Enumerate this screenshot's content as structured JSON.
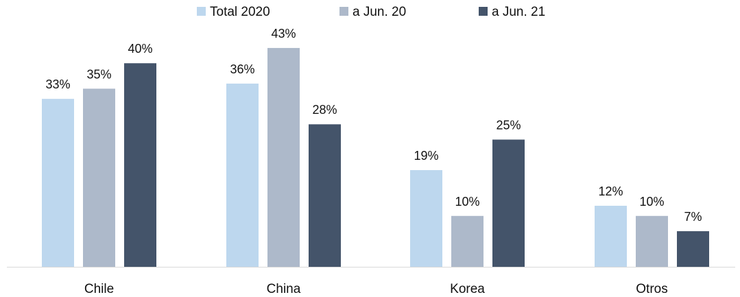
{
  "chart_data": {
    "type": "bar",
    "categories": [
      "Chile",
      "China",
      "Korea",
      "Otros"
    ],
    "series": [
      {
        "name": "Total 2020",
        "values": [
          33,
          36,
          19,
          12
        ],
        "labels": [
          "33%",
          "36%",
          "19%",
          "12%"
        ],
        "color": "#bdd7ee"
      },
      {
        "name": "a Jun. 20",
        "values": [
          35,
          43,
          10,
          10
        ],
        "labels": [
          "35%",
          "43%",
          "10%",
          "10%"
        ],
        "color": "#adb9ca"
      },
      {
        "name": "a Jun. 21",
        "values": [
          40,
          28,
          25,
          7
        ],
        "labels": [
          "40%",
          "28%",
          "25%",
          "7%"
        ],
        "color": "#44546a"
      }
    ],
    "ylim": [
      0,
      50
    ],
    "legend_position": "top",
    "grid": false,
    "axis_color": "#d9d9d9"
  }
}
